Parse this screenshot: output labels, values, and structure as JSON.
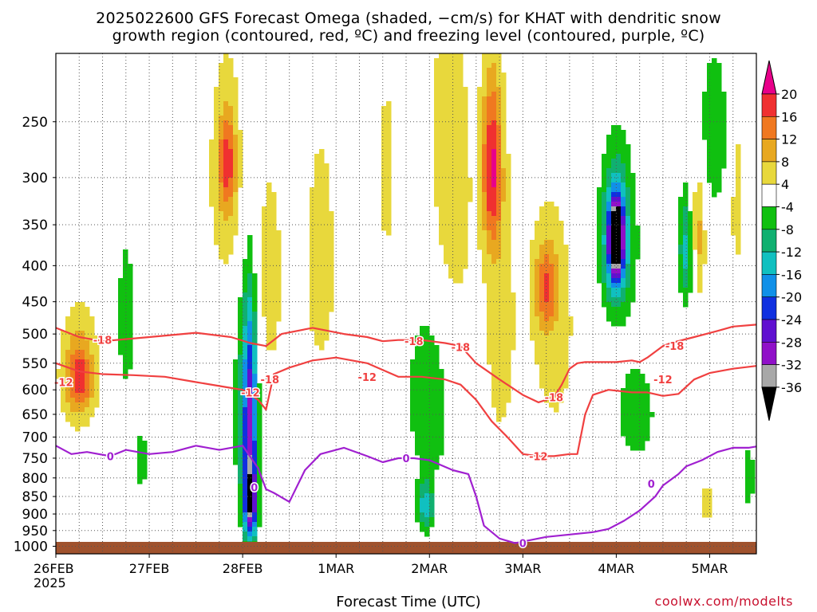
{
  "title_line1": "2025022600 GFS Forecast Omega (shaded, −cm/s) for KHAT with dendritic snow",
  "title_line2": "growth region (contoured, red, ºC) and freezing level (contoured, purple, ºC)",
  "xlabel": "Forecast Time (UTC)",
  "credit": "coolwx.com/modelts",
  "chart_data": {
    "type": "heatmap",
    "x_ticks": [
      {
        "label": "26FEB",
        "sublabel": "2025",
        "hours": 0
      },
      {
        "label": "27FEB",
        "hours": 24
      },
      {
        "label": "28FEB",
        "hours": 48
      },
      {
        "label": "1MAR",
        "hours": 72
      },
      {
        "label": "2MAR",
        "hours": 96
      },
      {
        "label": "3MAR",
        "hours": 120
      },
      {
        "label": "4MAR",
        "hours": 144
      },
      {
        "label": "5MAR",
        "hours": 168
      }
    ],
    "xlim_hours": [
      0,
      180
    ],
    "y_ticks": [
      250,
      300,
      350,
      400,
      450,
      500,
      550,
      600,
      650,
      700,
      750,
      800,
      850,
      900,
      950,
      1000
    ],
    "ylim_hpa": [
      200,
      1025
    ],
    "y_scale": "log",
    "grid": true,
    "colorbar": {
      "levels": [
        "20",
        "16",
        "12",
        "8",
        "4",
        "-4",
        "-8",
        "-12",
        "-16",
        "-20",
        "-24",
        "-28",
        "-32",
        "-36"
      ],
      "colors": [
        "#e8008a",
        "#f03030",
        "#f07820",
        "#e8a820",
        "#e8d83c",
        "#ffffff",
        "#10c010",
        "#10b070",
        "#10c0c0",
        "#1090e8",
        "#1030e0",
        "#6010d0",
        "#9010c8",
        "#a8a8a8",
        "#000000"
      ]
    },
    "omega_blobs": [
      {
        "h": 6,
        "p": 560,
        "dh": 6,
        "dp": 130,
        "v": 8
      },
      {
        "h": 6,
        "p": 580,
        "dh": 3,
        "dp": 60,
        "v": 12
      },
      {
        "h": 18,
        "p": 480,
        "dh": 3,
        "dp": 160,
        "v": -6
      },
      {
        "h": 22,
        "p": 760,
        "dh": 2,
        "dp": 90,
        "v": -6
      },
      {
        "h": 44,
        "p": 300,
        "dh": 5,
        "dp": 120,
        "v": 8
      },
      {
        "h": 44,
        "p": 285,
        "dh": 2,
        "dp": 40,
        "v": 12
      },
      {
        "h": 49,
        "p": 650,
        "dh": 3,
        "dp": 260,
        "v": -12
      },
      {
        "h": 50,
        "p": 650,
        "dh": 1.6,
        "dp": 220,
        "v": -18
      },
      {
        "h": 50,
        "p": 870,
        "dh": 1.6,
        "dp": 110,
        "v": -28
      },
      {
        "h": 55,
        "p": 420,
        "dh": 4,
        "dp": 180,
        "v": 6
      },
      {
        "h": 68,
        "p": 400,
        "dh": 5,
        "dp": 200,
        "v": 6
      },
      {
        "h": 85,
        "p": 300,
        "dh": 3,
        "dp": 150,
        "v": 5
      },
      {
        "h": 96,
        "p": 600,
        "dh": 6,
        "dp": 220,
        "v": -8
      },
      {
        "h": 95,
        "p": 880,
        "dh": 2,
        "dp": 70,
        "v": -14
      },
      {
        "h": 101,
        "p": 320,
        "dh": 7,
        "dp": 220,
        "v": 7
      },
      {
        "h": 112,
        "p": 290,
        "dh": 2.5,
        "dp": 80,
        "v": 18
      },
      {
        "h": 114,
        "p": 480,
        "dh": 4,
        "dp": 260,
        "v": 6
      },
      {
        "h": 126,
        "p": 430,
        "dh": 3,
        "dp": 60,
        "v": 13
      },
      {
        "h": 128,
        "p": 500,
        "dh": 9,
        "dp": 300,
        "v": 5
      },
      {
        "h": 144,
        "p": 370,
        "dh": 6,
        "dp": 120,
        "v": -8
      },
      {
        "h": 144,
        "p": 370,
        "dh": 3,
        "dp": 70,
        "v": -18
      },
      {
        "h": 144,
        "p": 365,
        "dh": 1.6,
        "dp": 40,
        "v": -30
      },
      {
        "h": 144,
        "p": 365,
        "dh": 0.9,
        "dp": 22,
        "v": -38
      },
      {
        "h": 149,
        "p": 650,
        "dh": 5,
        "dp": 100,
        "v": -8
      },
      {
        "h": 162,
        "p": 380,
        "dh": 2,
        "dp": 70,
        "v": -14
      },
      {
        "h": 165,
        "p": 360,
        "dh": 2,
        "dp": 90,
        "v": 10
      },
      {
        "h": 169,
        "p": 260,
        "dh": 4,
        "dp": 70,
        "v": -8
      },
      {
        "h": 175,
        "p": 320,
        "dh": 2,
        "dp": 110,
        "v": 6
      },
      {
        "h": 167,
        "p": 870,
        "dh": 2,
        "dp": 60,
        "v": 7
      },
      {
        "h": 178,
        "p": 800,
        "dh": 1.5,
        "dp": 80,
        "v": -8
      }
    ],
    "isotherms": [
      {
        "label": "-18",
        "color": "#f04040",
        "points": [
          [
            0,
            490
          ],
          [
            6,
            505
          ],
          [
            12,
            512
          ],
          [
            24,
            505
          ],
          [
            36,
            498
          ],
          [
            45,
            505
          ],
          [
            50,
            515
          ],
          [
            54,
            520
          ],
          [
            58,
            500
          ],
          [
            66,
            490
          ],
          [
            74,
            500
          ],
          [
            80,
            505
          ],
          [
            84,
            512
          ],
          [
            88,
            510
          ],
          [
            94,
            510
          ],
          [
            100,
            515
          ],
          [
            104,
            520
          ],
          [
            108,
            550
          ],
          [
            114,
            580
          ],
          [
            120,
            610
          ],
          [
            124,
            625
          ],
          [
            128,
            615
          ],
          [
            130,
            590
          ],
          [
            132,
            560
          ],
          [
            134,
            550
          ],
          [
            136,
            548
          ],
          [
            144,
            548
          ],
          [
            148,
            545
          ],
          [
            150,
            548
          ],
          [
            152,
            540
          ],
          [
            156,
            520
          ],
          [
            158,
            515
          ],
          [
            164,
            505
          ],
          [
            170,
            495
          ],
          [
            174,
            488
          ],
          [
            180,
            485
          ]
        ]
      },
      {
        "label": "-12",
        "color": "#f04040",
        "points": [
          [
            0,
            550
          ],
          [
            6,
            565
          ],
          [
            12,
            570
          ],
          [
            20,
            572
          ],
          [
            28,
            575
          ],
          [
            36,
            585
          ],
          [
            44,
            595
          ],
          [
            48,
            600
          ],
          [
            52,
            620
          ],
          [
            54,
            640
          ],
          [
            56,
            570
          ],
          [
            60,
            558
          ],
          [
            66,
            545
          ],
          [
            72,
            540
          ],
          [
            80,
            550
          ],
          [
            88,
            575
          ],
          [
            94,
            575
          ],
          [
            100,
            580
          ],
          [
            104,
            590
          ],
          [
            108,
            620
          ],
          [
            112,
            665
          ],
          [
            116,
            700
          ],
          [
            120,
            740
          ],
          [
            124,
            745
          ],
          [
            128,
            745
          ],
          [
            132,
            740
          ],
          [
            134,
            740
          ],
          [
            136,
            650
          ],
          [
            138,
            610
          ],
          [
            142,
            600
          ],
          [
            148,
            605
          ],
          [
            152,
            605
          ],
          [
            156,
            612
          ],
          [
            160,
            608
          ],
          [
            164,
            580
          ],
          [
            168,
            568
          ],
          [
            174,
            560
          ],
          [
            180,
            555
          ]
        ]
      },
      {
        "label": "0",
        "color": "#a020d0",
        "points": [
          [
            0,
            720
          ],
          [
            4,
            740
          ],
          [
            8,
            735
          ],
          [
            14,
            745
          ],
          [
            18,
            730
          ],
          [
            24,
            740
          ],
          [
            30,
            735
          ],
          [
            36,
            720
          ],
          [
            42,
            730
          ],
          [
            48,
            720
          ],
          [
            52,
            775
          ],
          [
            54,
            830
          ],
          [
            56,
            840
          ],
          [
            60,
            865
          ],
          [
            64,
            780
          ],
          [
            68,
            740
          ],
          [
            74,
            725
          ],
          [
            80,
            745
          ],
          [
            84,
            760
          ],
          [
            88,
            750
          ],
          [
            92,
            750
          ],
          [
            96,
            755
          ],
          [
            102,
            780
          ],
          [
            106,
            790
          ],
          [
            108,
            850
          ],
          [
            110,
            935
          ],
          [
            114,
            975
          ],
          [
            118,
            990
          ],
          [
            122,
            980
          ],
          [
            126,
            970
          ],
          [
            130,
            965
          ],
          [
            134,
            960
          ],
          [
            138,
            955
          ],
          [
            142,
            945
          ],
          [
            146,
            920
          ],
          [
            150,
            890
          ],
          [
            154,
            850
          ],
          [
            156,
            820
          ],
          [
            160,
            790
          ],
          [
            162,
            770
          ],
          [
            166,
            755
          ],
          [
            170,
            735
          ],
          [
            174,
            725
          ],
          [
            178,
            725
          ],
          [
            180,
            722
          ]
        ]
      }
    ],
    "contour_labels": [
      {
        "text": "-18",
        "h": 12,
        "p": 510,
        "color": "#f04040"
      },
      {
        "text": "-12",
        "h": 2,
        "p": 585,
        "color": "#f04040"
      },
      {
        "text": "-12",
        "h": 50,
        "p": 605,
        "color": "#f04040"
      },
      {
        "text": "-18",
        "h": 55,
        "p": 580,
        "color": "#f04040"
      },
      {
        "text": "-12",
        "h": 80,
        "p": 575,
        "color": "#f04040"
      },
      {
        "text": "-18",
        "h": 92,
        "p": 512,
        "color": "#f04040"
      },
      {
        "text": "-18",
        "h": 104,
        "p": 522,
        "color": "#f04040"
      },
      {
        "text": "-18",
        "h": 128,
        "p": 615,
        "color": "#f04040"
      },
      {
        "text": "-12",
        "h": 124,
        "p": 745,
        "color": "#f04040"
      },
      {
        "text": "-18",
        "h": 159,
        "p": 520,
        "color": "#f04040"
      },
      {
        "text": "-12",
        "h": 156,
        "p": 580,
        "color": "#f04040"
      },
      {
        "text": "0",
        "h": 14,
        "p": 745,
        "color": "#a020d0"
      },
      {
        "text": "0",
        "h": 51,
        "p": 825,
        "color": "#a020d0"
      },
      {
        "text": "0",
        "h": 90,
        "p": 750,
        "color": "#a020d0"
      },
      {
        "text": "0",
        "h": 120,
        "p": 990,
        "color": "#a020d0"
      },
      {
        "text": "0",
        "h": 153,
        "p": 815,
        "color": "#a020d0"
      }
    ]
  }
}
